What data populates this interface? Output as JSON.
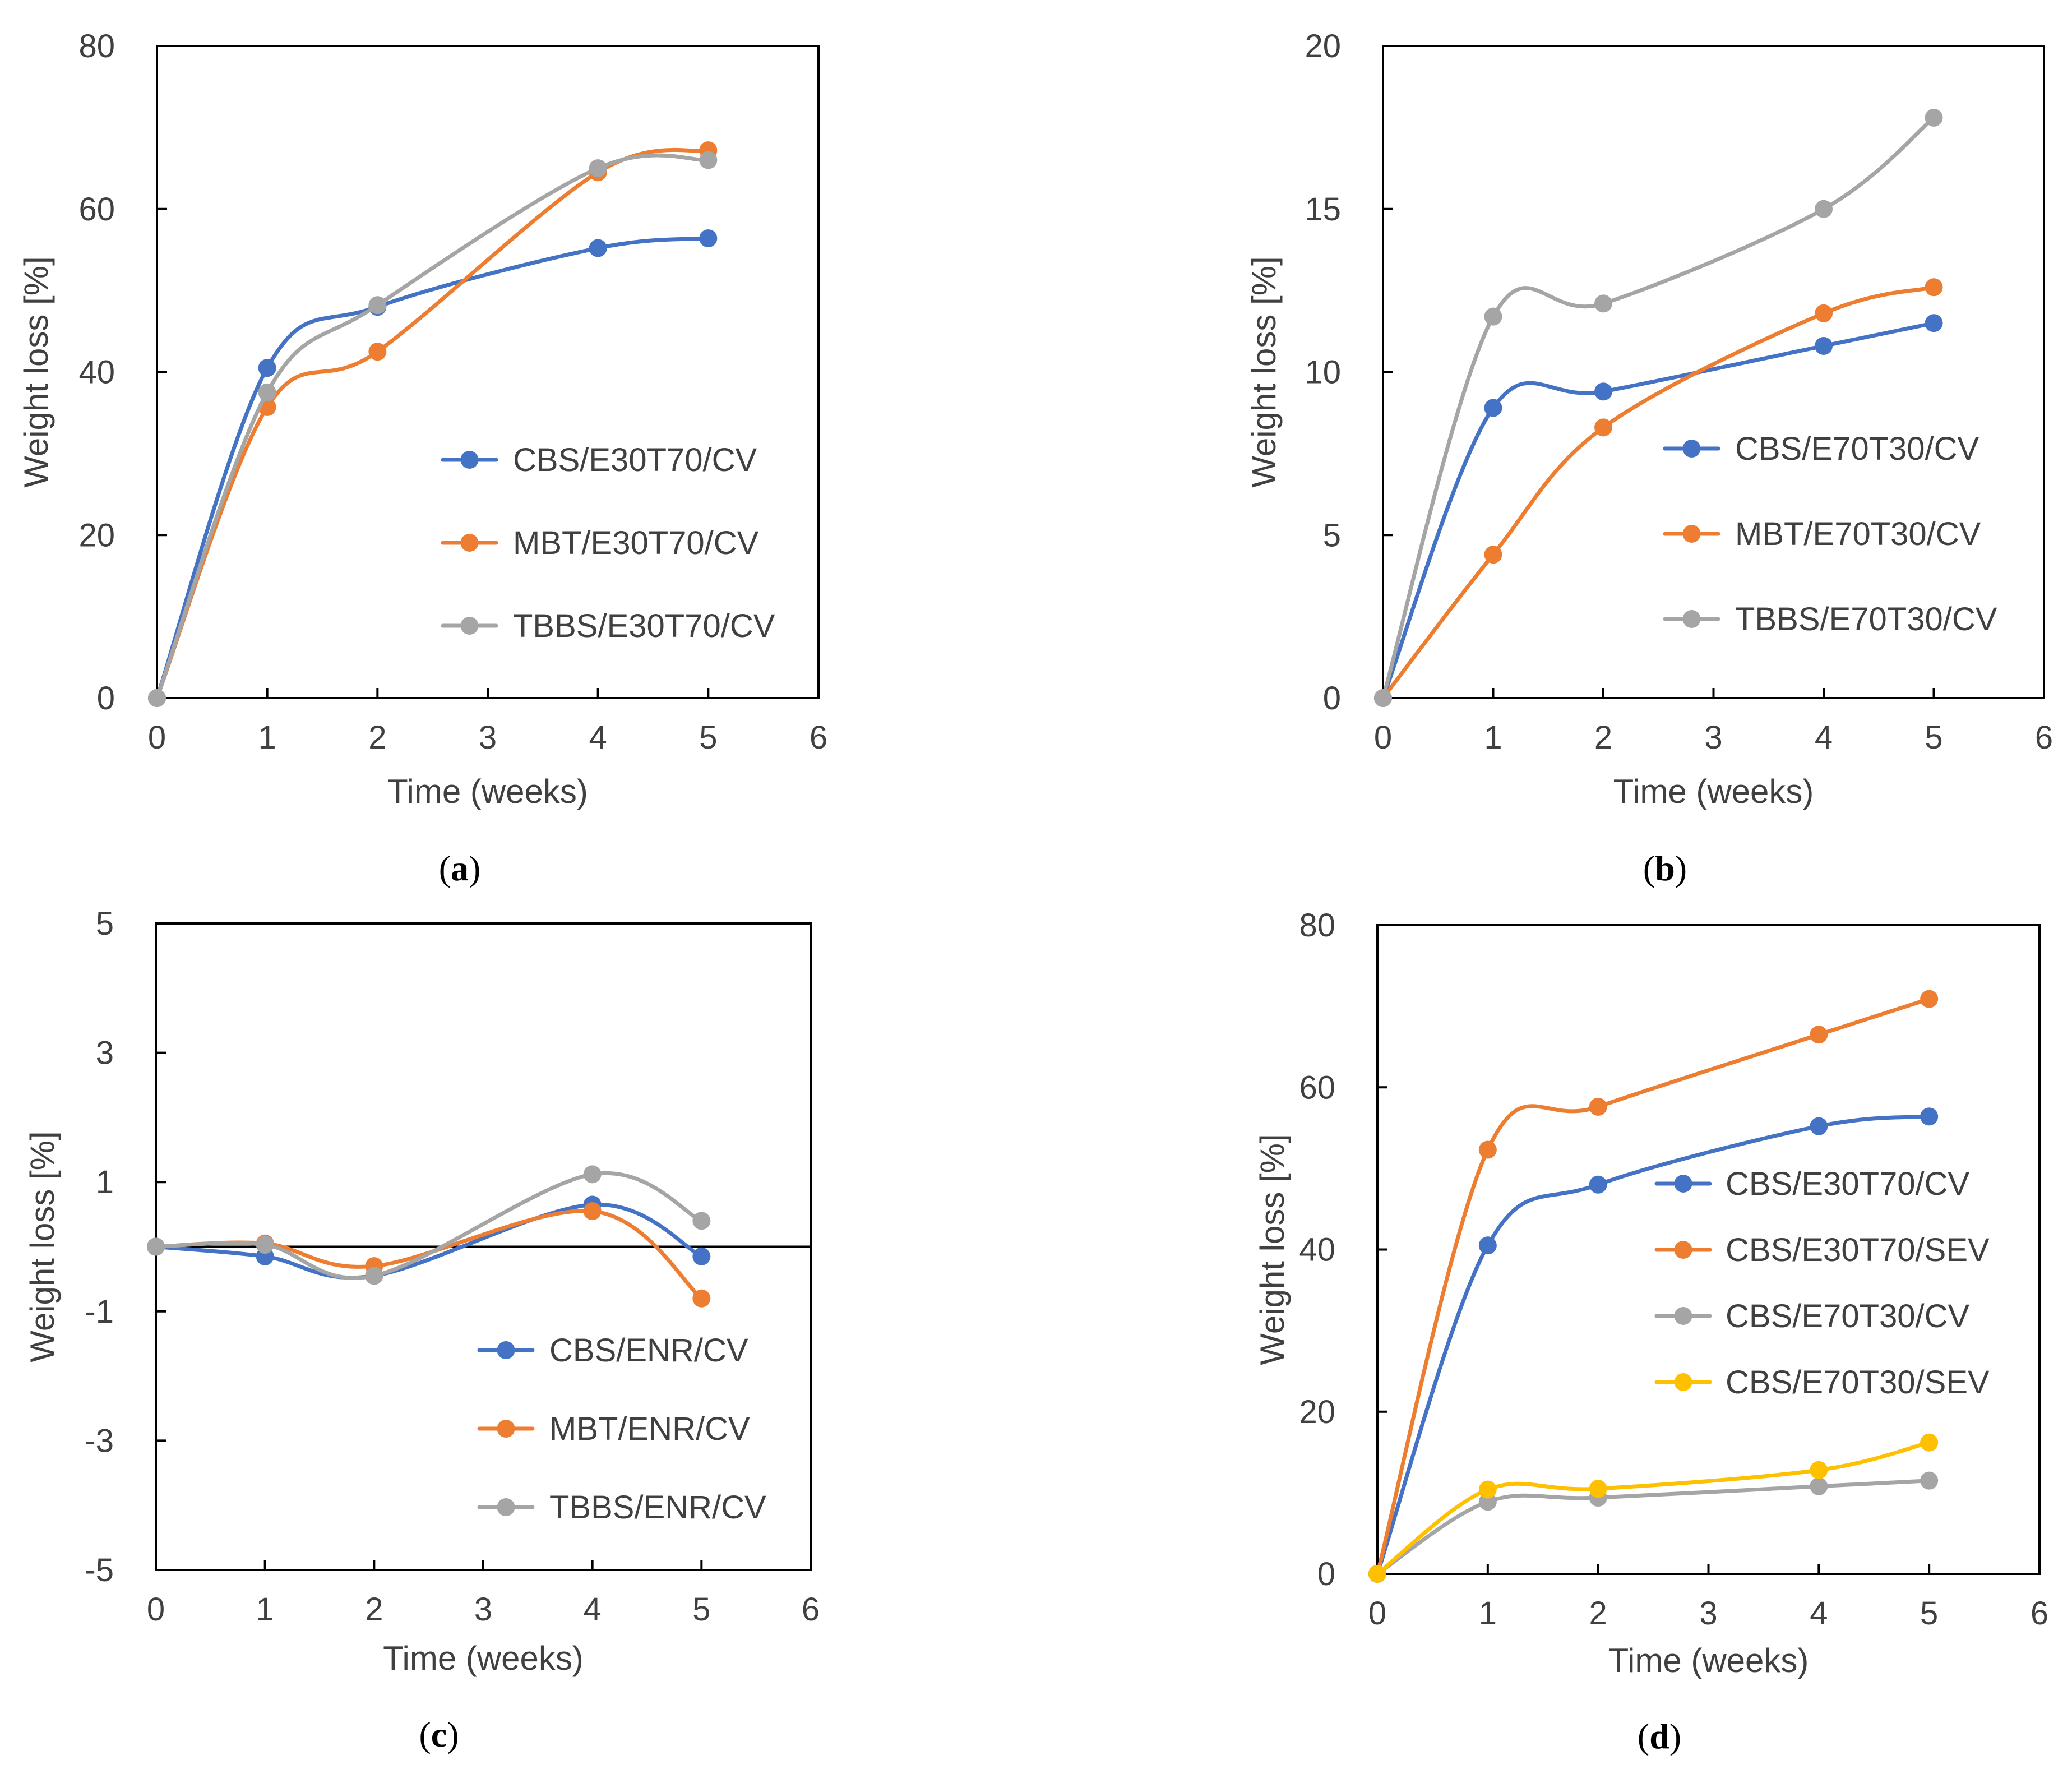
{
  "colors": {
    "blue": "#4472c4",
    "orange": "#ed7d31",
    "gray": "#a5a5a5",
    "yellow": "#ffc000",
    "axis": "#000000",
    "text": "#404040"
  },
  "chart_data": [
    {
      "id": "a",
      "type": "line",
      "caption_letter": "a",
      "xlabel": "Time (weeks)",
      "ylabel": "Weight loss [%]",
      "xlim": [
        0,
        6
      ],
      "ylim": [
        0,
        80
      ],
      "xticks": [
        0,
        1,
        2,
        3,
        4,
        5,
        6
      ],
      "yticks": [
        0,
        20,
        40,
        60,
        80
      ],
      "x": [
        0,
        1,
        2,
        4,
        5
      ],
      "series": [
        {
          "name": "CBS/E30T70/CV",
          "color_key": "blue",
          "values": [
            0,
            40.5,
            48.0,
            55.2,
            56.4
          ]
        },
        {
          "name": "MBT/E30T70/CV",
          "color_key": "orange",
          "values": [
            0,
            35.7,
            42.5,
            64.5,
            67.2
          ]
        },
        {
          "name": "TBBS/E30T70/CV",
          "color_key": "gray",
          "values": [
            0,
            37.5,
            48.2,
            65.0,
            66.0
          ]
        }
      ]
    },
    {
      "id": "b",
      "type": "line",
      "caption_letter": "b",
      "xlabel": "Time (weeks)",
      "ylabel": "Weight loss [%]",
      "xlim": [
        0,
        6
      ],
      "ylim": [
        0,
        20
      ],
      "xticks": [
        0,
        1,
        2,
        3,
        4,
        5,
        6
      ],
      "yticks": [
        0,
        5,
        10,
        15,
        20
      ],
      "x": [
        0,
        1,
        2,
        4,
        5
      ],
      "series": [
        {
          "name": "CBS/E70T30/CV",
          "color_key": "blue",
          "values": [
            0,
            8.9,
            9.4,
            10.8,
            11.5
          ]
        },
        {
          "name": "MBT/E70T30/CV",
          "color_key": "orange",
          "values": [
            0,
            4.4,
            8.3,
            11.8,
            12.6
          ]
        },
        {
          "name": "TBBS/E70T30/CV",
          "color_key": "gray",
          "values": [
            0,
            11.7,
            12.1,
            15.0,
            17.8
          ]
        }
      ]
    },
    {
      "id": "c",
      "type": "line",
      "caption_letter": "c",
      "xlabel": "Time (weeks)",
      "ylabel": "Weight loss [%]",
      "xlim": [
        0,
        6
      ],
      "ylim": [
        -5,
        5
      ],
      "xticks": [
        0,
        1,
        2,
        3,
        4,
        5,
        6
      ],
      "yticks": [
        -5,
        -3,
        -1,
        1,
        3,
        5
      ],
      "zero_line": true,
      "x": [
        0,
        1,
        2,
        4,
        5
      ],
      "series": [
        {
          "name": "CBS/ENR/CV",
          "color_key": "blue",
          "values": [
            0,
            -0.15,
            -0.45,
            0.65,
            -0.15
          ]
        },
        {
          "name": "MBT/ENR/CV",
          "color_key": "orange",
          "values": [
            0,
            0.05,
            -0.3,
            0.55,
            -0.8
          ]
        },
        {
          "name": "TBBS/ENR/CV",
          "color_key": "gray",
          "values": [
            0,
            0.03,
            -0.45,
            1.12,
            0.4
          ]
        }
      ]
    },
    {
      "id": "d",
      "type": "line",
      "caption_letter": "d",
      "xlabel": "Time (weeks)",
      "ylabel": "Weight loss [%]",
      "xlim": [
        0,
        6
      ],
      "ylim": [
        0,
        80
      ],
      "xticks": [
        0,
        1,
        2,
        3,
        4,
        5,
        6
      ],
      "yticks": [
        0,
        20,
        40,
        60,
        80
      ],
      "x": [
        0,
        1,
        2,
        4,
        5
      ],
      "series": [
        {
          "name": "CBS/E30T70/CV",
          "color_key": "blue",
          "values": [
            0,
            40.5,
            48.0,
            55.2,
            56.4
          ]
        },
        {
          "name": "CBS/E30T70/SEV",
          "color_key": "orange",
          "values": [
            0,
            52.3,
            57.6,
            66.5,
            70.9
          ]
        },
        {
          "name": "CBS/E70T30/CV",
          "color_key": "gray",
          "values": [
            0,
            8.9,
            9.4,
            10.8,
            11.5
          ]
        },
        {
          "name": "CBS/E70T30/SEV",
          "color_key": "yellow",
          "values": [
            0,
            10.4,
            10.5,
            12.8,
            16.2
          ]
        }
      ]
    }
  ]
}
